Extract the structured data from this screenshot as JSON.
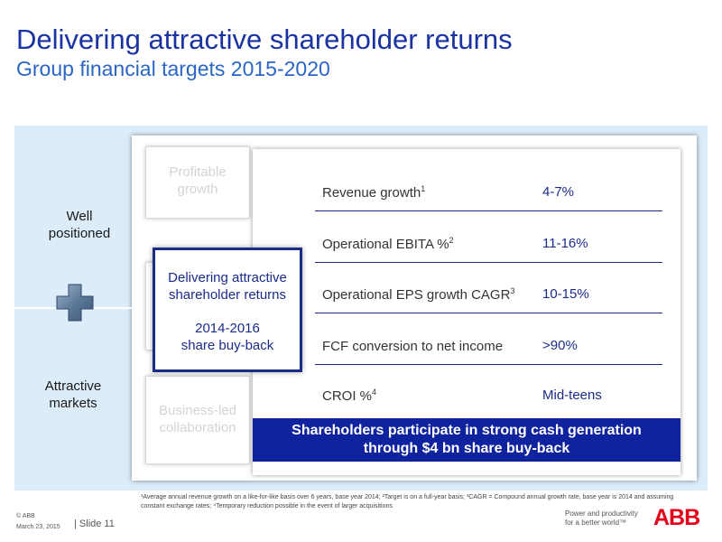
{
  "title": "Delivering attractive shareholder returns",
  "subtitle": "Group financial targets 2015-2020",
  "left_panel": {
    "top_label_1": "Well",
    "top_label_2": "positioned",
    "bottom_label_1": "Attractive",
    "bottom_label_2": "markets"
  },
  "pillars": {
    "top_1": "Profitable",
    "top_2": "growth",
    "bottom_1": "Business-led",
    "bottom_2": "collaboration"
  },
  "callout": {
    "line1": "Delivering attractive",
    "line2": "shareholder returns",
    "line3": "2014-2016",
    "line4": "share buy-back"
  },
  "targets": [
    {
      "label": "Revenue growth",
      "sup": "1",
      "value": "4-7%"
    },
    {
      "label": "Operational EBITA %",
      "sup": "2",
      "value": "11-16%"
    },
    {
      "label": "Operational EPS growth CAGR",
      "sup": "3",
      "value": "10-15%"
    },
    {
      "label": "FCF conversion to net income",
      "sup": "",
      "value": ">90%"
    },
    {
      "label": "CROI %",
      "sup": "4",
      "value": "Mid-teens"
    }
  ],
  "banner": {
    "line1": "Shareholders participate in strong cash generation",
    "line2": "through $4 bn share buy-back"
  },
  "footnote": "¹Average annual revenue growth on a like-for-like basis over 6 years, base year 2014; ²Target is on a full-year basis; ³CAGR = Compound annual growth rate, base year is 2014 and assuming constant exchange rates; ⁴Temporary reduction possible in the event of larger acquisitions",
  "footer": {
    "copyright": "© ABB",
    "date": "March 23, 2015",
    "slide": "| Slide 11",
    "tagline_1": "Power and productivity",
    "tagline_2": "for a better world™",
    "logo": "ABB"
  },
  "colors": {
    "title": "#1a33a0",
    "subtitle": "#2a66c6",
    "accent_navy": "#1a2b8a",
    "banner": "#10239e",
    "panel": "#dcecf8",
    "logo_red": "#e3001b"
  },
  "icons": [
    "plus-icon"
  ]
}
